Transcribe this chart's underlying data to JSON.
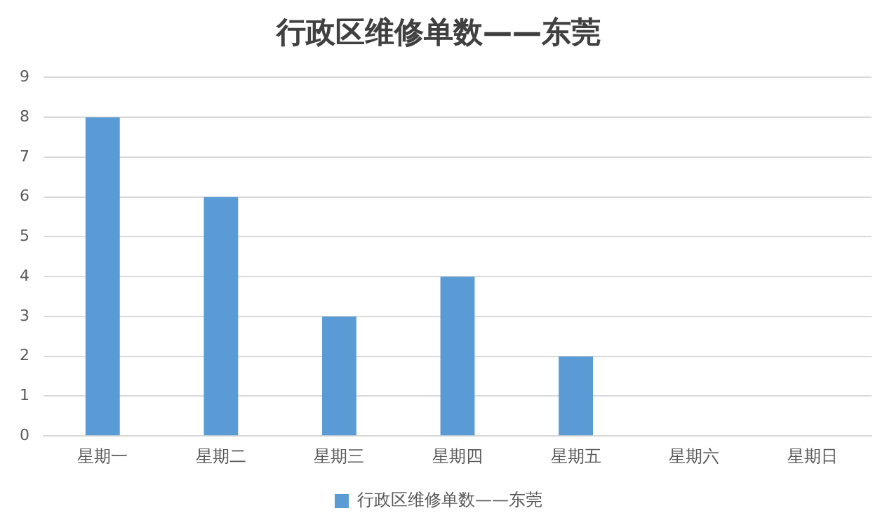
{
  "chart_data": {
    "type": "bar",
    "title": "行政区维修单数——东莞",
    "categories": [
      "星期一",
      "星期二",
      "星期三",
      "星期四",
      "星期五",
      "星期六",
      "星期日"
    ],
    "series": [
      {
        "name": "行政区维修单数——东莞",
        "color": "#5b9bd5",
        "values": [
          8,
          6,
          3,
          4,
          2,
          0,
          0
        ]
      }
    ],
    "ylim": [
      0,
      9
    ],
    "yticks": [
      0,
      1,
      2,
      3,
      4,
      5,
      6,
      7,
      8,
      9
    ],
    "grid": "y",
    "legend": "bottom"
  }
}
